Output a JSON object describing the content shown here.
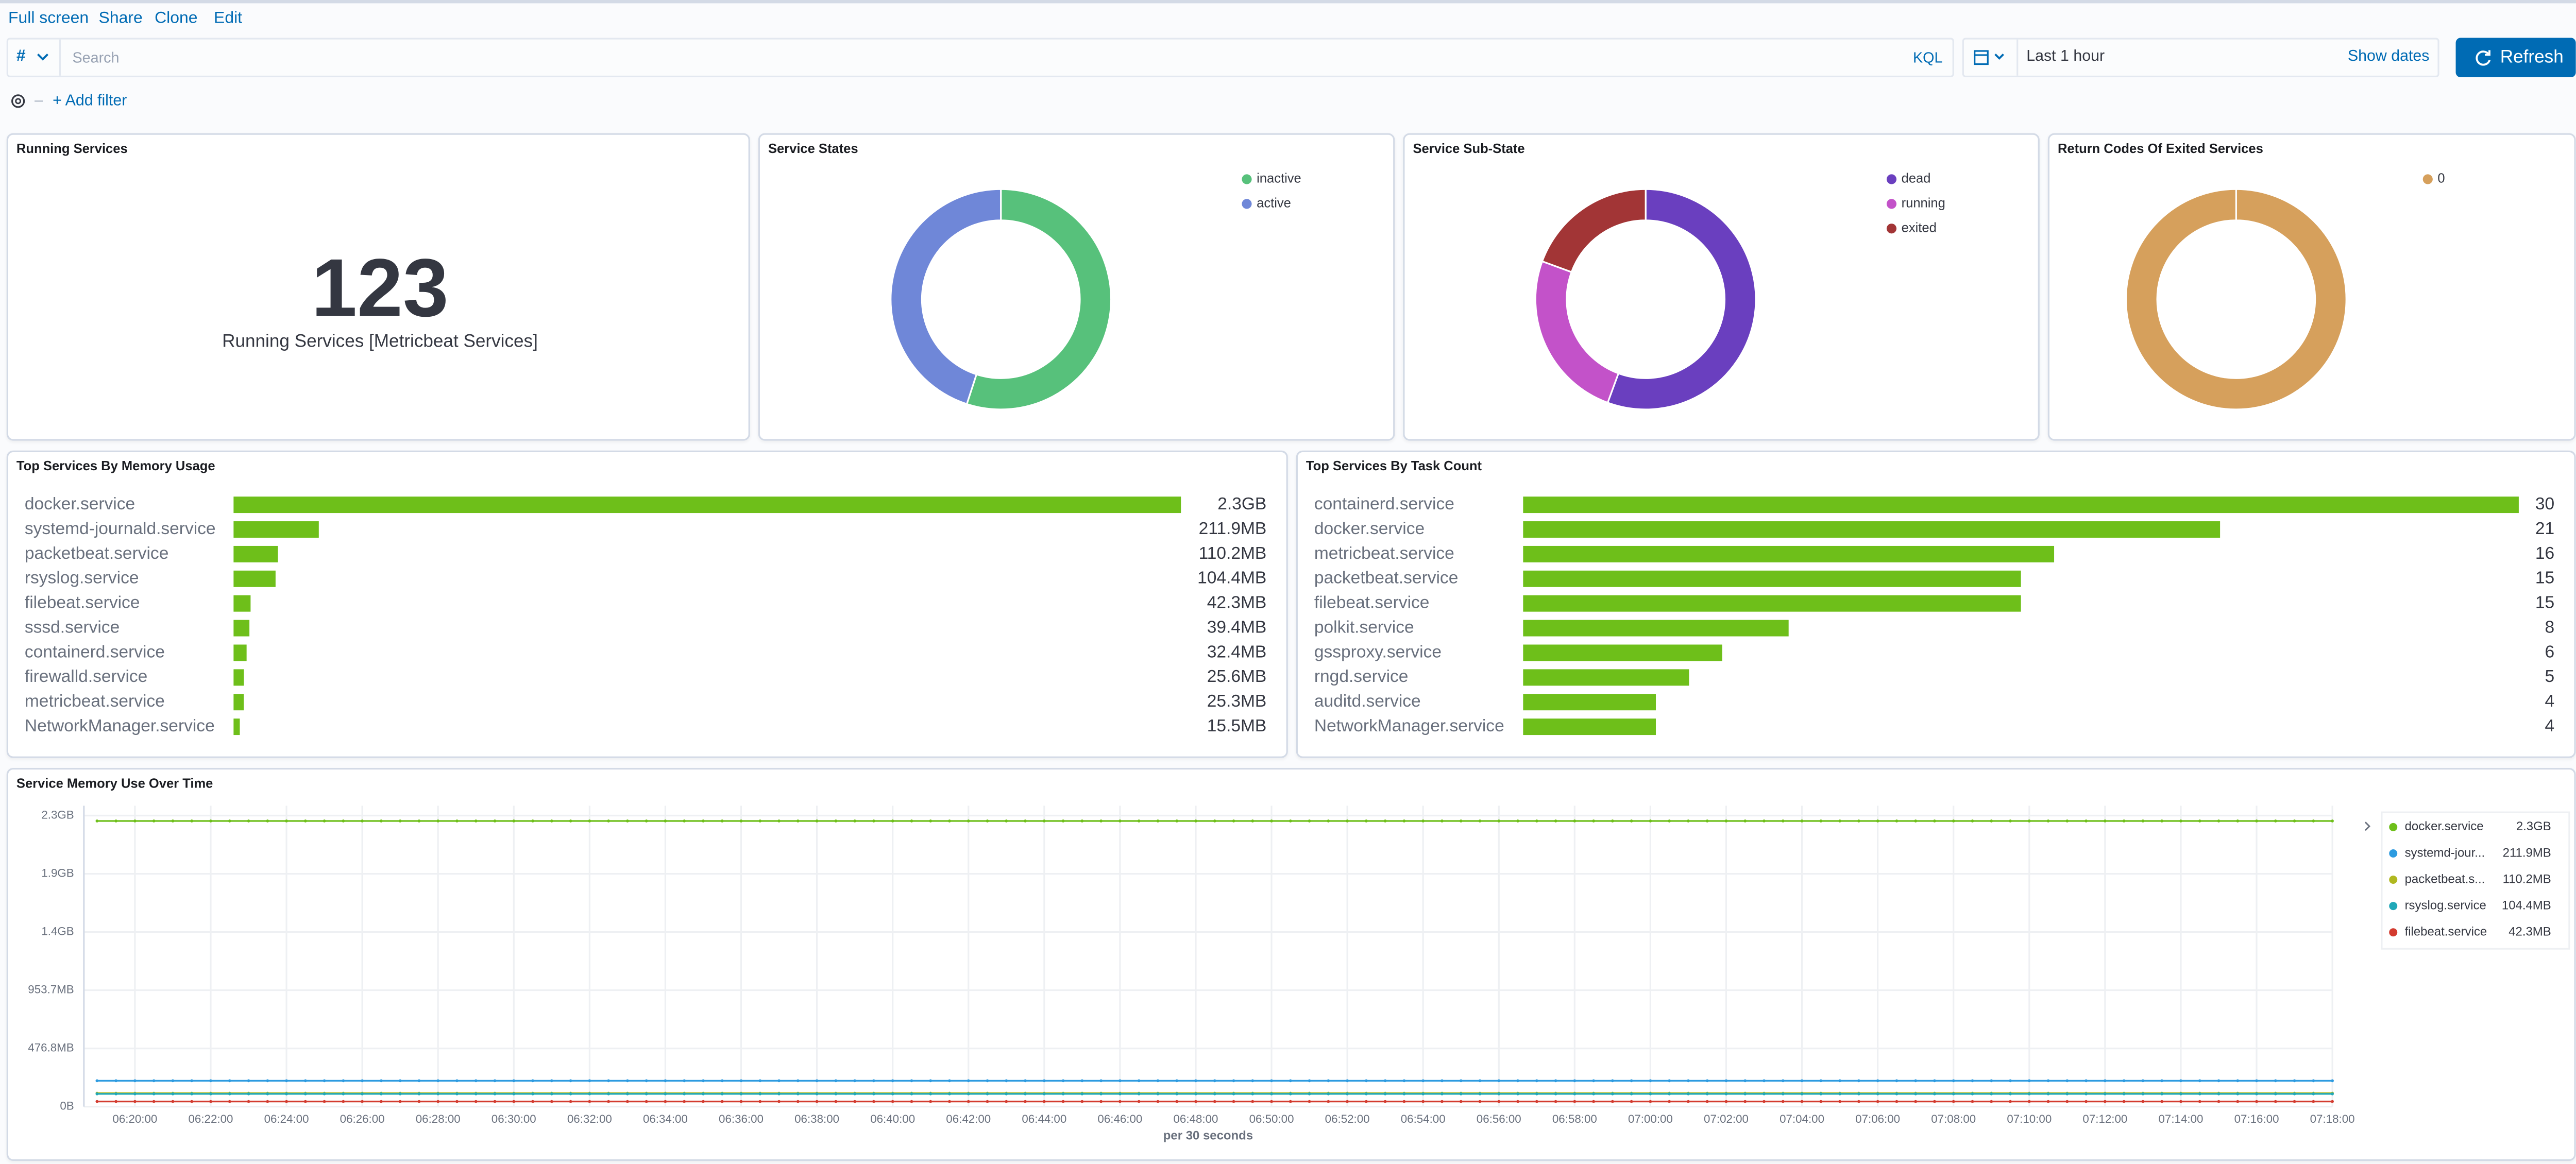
{
  "toolbar": {
    "links": [
      "Full screen",
      "Share",
      "Clone",
      "Edit"
    ],
    "query_language_symbol": "#",
    "search_placeholder": "Search",
    "query_language": "KQL",
    "time_range": "Last 1 hour",
    "show_dates": "Show dates",
    "refresh": "Refresh",
    "add_filter": "+ Add filter"
  },
  "chart_data": [
    {
      "type": "metric",
      "title": "Running Services",
      "value": 123,
      "label": "Running Services [Metricbeat Services]"
    },
    {
      "type": "pie",
      "title": "Service States",
      "categories": [
        "inactive",
        "active"
      ],
      "values": [
        55,
        45
      ],
      "colors": [
        "#57c17b",
        "#6f87d8"
      ],
      "legend": "top-right"
    },
    {
      "type": "pie",
      "title": "Service Sub-State",
      "categories": [
        "dead",
        "running",
        "exited"
      ],
      "values": [
        55.6,
        25,
        19.4
      ],
      "colors": [
        "#6a3fbf",
        "#c352c9",
        "#a23536"
      ],
      "legend": "top-right"
    },
    {
      "type": "pie",
      "title": "Return Codes Of Exited Services",
      "categories": [
        "0"
      ],
      "values": [
        100
      ],
      "colors": [
        "#d6a05c"
      ],
      "legend": "top-right"
    },
    {
      "type": "hbar",
      "title": "Top Services By Memory Usage",
      "categories": [
        "docker.service",
        "systemd-journald.service",
        "packetbeat.service",
        "rsyslog.service",
        "filebeat.service",
        "sssd.service",
        "containerd.service",
        "firewalld.service",
        "metricbeat.service",
        "NetworkManager.service"
      ],
      "values": [
        2355.2,
        211.9,
        110.2,
        104.4,
        42.3,
        39.4,
        32.4,
        25.6,
        25.3,
        15.5
      ],
      "value_labels": [
        "2.3GB",
        "211.9MB",
        "110.2MB",
        "104.4MB",
        "42.3MB",
        "39.4MB",
        "32.4MB",
        "25.6MB",
        "25.3MB",
        "15.5MB"
      ],
      "color": "#6ebf1a"
    },
    {
      "type": "hbar",
      "title": "Top Services By Task Count",
      "categories": [
        "containerd.service",
        "docker.service",
        "metricbeat.service",
        "packetbeat.service",
        "filebeat.service",
        "polkit.service",
        "gssproxy.service",
        "rngd.service",
        "auditd.service",
        "NetworkManager.service"
      ],
      "values": [
        30,
        21,
        16,
        15,
        15,
        8,
        6,
        5,
        4,
        4
      ],
      "color": "#6ebf1a"
    },
    {
      "type": "line",
      "title": "Service Memory Use Over Time",
      "xlabel": "per 30 seconds",
      "grid": true,
      "legend": "right",
      "x": [
        "06:19:00",
        "06:19:30",
        "06:20:00",
        "06:20:30",
        "06:21:00",
        "06:21:30",
        "06:22:00",
        "06:22:30",
        "06:23:00",
        "06:23:30",
        "06:24:00",
        "06:24:30",
        "06:25:00",
        "06:25:30",
        "06:26:00",
        "06:26:30",
        "06:27:00",
        "06:27:30",
        "06:28:00",
        "06:28:30",
        "06:29:00",
        "06:29:30",
        "06:30:00",
        "06:30:30",
        "06:31:00",
        "06:31:30",
        "06:32:00",
        "06:32:30",
        "06:33:00",
        "06:33:30",
        "06:34:00",
        "06:34:30",
        "06:35:00",
        "06:35:30",
        "06:36:00",
        "06:36:30",
        "06:37:00",
        "06:37:30",
        "06:38:00",
        "06:38:30",
        "06:39:00",
        "06:39:30",
        "06:40:00",
        "06:40:30",
        "06:41:00",
        "06:41:30",
        "06:42:00",
        "06:42:30",
        "06:43:00",
        "06:43:30",
        "06:44:00",
        "06:44:30",
        "06:45:00",
        "06:45:30",
        "06:46:00",
        "06:46:30",
        "06:47:00",
        "06:47:30",
        "06:48:00",
        "06:48:30",
        "06:49:00",
        "06:49:30",
        "06:50:00",
        "06:50:30",
        "06:51:00",
        "06:51:30",
        "06:52:00",
        "06:52:30",
        "06:53:00",
        "06:53:30",
        "06:54:00",
        "06:54:30",
        "06:55:00",
        "06:55:30",
        "06:56:00",
        "06:56:30",
        "06:57:00",
        "06:57:30",
        "06:58:00",
        "06:58:30",
        "06:59:00",
        "06:59:30",
        "07:00:00",
        "07:00:30",
        "07:01:00",
        "07:01:30",
        "07:02:00",
        "07:02:30",
        "07:03:00",
        "07:03:30",
        "07:04:00",
        "07:04:30",
        "07:05:00",
        "07:05:30",
        "07:06:00",
        "07:06:30",
        "07:07:00",
        "07:07:30",
        "07:08:00",
        "07:08:30",
        "07:09:00",
        "07:09:30",
        "07:10:00",
        "07:10:30",
        "07:11:00",
        "07:11:30",
        "07:12:00",
        "07:12:30",
        "07:13:00",
        "07:13:30",
        "07:14:00",
        "07:14:30",
        "07:15:00",
        "07:15:30",
        "07:16:00",
        "07:16:30",
        "07:17:00",
        "07:17:30",
        "07:18:00"
      ],
      "xticks": [
        "06:20:00",
        "06:22:00",
        "06:24:00",
        "06:26:00",
        "06:28:00",
        "06:30:00",
        "06:32:00",
        "06:34:00",
        "06:36:00",
        "06:38:00",
        "06:40:00",
        "06:42:00",
        "06:44:00",
        "06:46:00",
        "06:48:00",
        "06:50:00",
        "06:52:00",
        "06:54:00",
        "06:56:00",
        "06:58:00",
        "07:00:00",
        "07:02:00",
        "07:04:00",
        "07:06:00",
        "07:08:00",
        "07:10:00",
        "07:12:00",
        "07:14:00",
        "07:16:00",
        "07:18:00"
      ],
      "ylim": [
        0,
        2384.2
      ],
      "yticks": [
        {
          "value": 0,
          "label": "0B"
        },
        {
          "value": 476.8,
          "label": "476.8MB"
        },
        {
          "value": 953.7,
          "label": "953.7MB"
        },
        {
          "value": 1430.5,
          "label": "1.4GB"
        },
        {
          "value": 1907.3,
          "label": "1.9GB"
        },
        {
          "value": 2384.2,
          "label": "2.3GB"
        }
      ],
      "series": [
        {
          "name": "docker.service",
          "color": "#6ebf1a",
          "last_value_label": "2.3GB",
          "values": [
            2340,
            2340,
            2340,
            2340,
            2340,
            2340,
            2340,
            2340,
            2340,
            2340,
            2340,
            2340,
            2340,
            2340,
            2340,
            2340,
            2340,
            2340,
            2340,
            2340,
            2340,
            2340,
            2340,
            2340,
            2340,
            2340,
            2340,
            2340,
            2340,
            2340,
            2340,
            2340,
            2340,
            2340,
            2340,
            2340,
            2340,
            2340,
            2340,
            2340,
            2340,
            2340,
            2340,
            2340,
            2340,
            2340,
            2340,
            2340,
            2340,
            2340,
            2340,
            2340,
            2340,
            2340,
            2340,
            2340,
            2340,
            2340,
            2340,
            2340,
            2340,
            2340,
            2340,
            2340,
            2340,
            2340,
            2340,
            2340,
            2340,
            2340,
            2340,
            2340,
            2340,
            2340,
            2340,
            2340,
            2340,
            2340,
            2340,
            2340,
            2340,
            2340,
            2340,
            2340,
            2340,
            2340,
            2340,
            2340,
            2340,
            2340,
            2340,
            2340,
            2340,
            2340,
            2340,
            2340,
            2340,
            2340,
            2340,
            2340,
            2340,
            2340,
            2340,
            2340,
            2340,
            2340,
            2340,
            2340,
            2340,
            2340,
            2340,
            2340,
            2340,
            2340,
            2340,
            2340,
            2340,
            2340,
            2340
          ]
        },
        {
          "name": "systemd-jour...",
          "color": "#2d9be0",
          "last_value_label": "211.9MB",
          "values": [
            211.9,
            211.9,
            211.9,
            211.9,
            211.9,
            211.9,
            211.9,
            211.9,
            211.9,
            211.9,
            211.9,
            211.9,
            211.9,
            211.9,
            211.9,
            211.9,
            211.9,
            211.9,
            211.9,
            211.9,
            211.9,
            211.9,
            211.9,
            211.9,
            211.9,
            211.9,
            211.9,
            211.9,
            211.9,
            211.9,
            211.9,
            211.9,
            211.9,
            211.9,
            211.9,
            211.9,
            211.9,
            211.9,
            211.9,
            211.9,
            211.9,
            211.9,
            211.9,
            211.9,
            211.9,
            211.9,
            211.9,
            211.9,
            211.9,
            211.9,
            211.9,
            211.9,
            211.9,
            211.9,
            211.9,
            211.9,
            211.9,
            211.9,
            211.9,
            211.9,
            211.9,
            211.9,
            211.9,
            211.9,
            211.9,
            211.9,
            211.9,
            211.9,
            211.9,
            211.9,
            211.9,
            211.9,
            211.9,
            211.9,
            211.9,
            211.9,
            211.9,
            211.9,
            211.9,
            211.9,
            211.9,
            211.9,
            211.9,
            211.9,
            211.9,
            211.9,
            211.9,
            211.9,
            211.9,
            211.9,
            211.9,
            211.9,
            211.9,
            211.9,
            211.9,
            211.9,
            211.9,
            211.9,
            211.9,
            211.9,
            211.9,
            211.9,
            211.9,
            211.9,
            211.9,
            211.9,
            211.9,
            211.9,
            211.9,
            211.9,
            211.9,
            211.9,
            211.9,
            211.9,
            211.9,
            211.9,
            211.9,
            211.9,
            211.9
          ]
        },
        {
          "name": "packetbeat.s...",
          "color": "#b0b820",
          "last_value_label": "110.2MB",
          "values": [
            110.2,
            110.2,
            110.2,
            110.2,
            110.2,
            110.2,
            110.2,
            110.2,
            110.2,
            110.2,
            110.2,
            110.2,
            110.2,
            110.2,
            110.2,
            110.2,
            110.2,
            110.2,
            110.2,
            110.2,
            110.2,
            110.2,
            110.2,
            110.2,
            110.2,
            110.2,
            110.2,
            110.2,
            110.2,
            110.2,
            110.2,
            110.2,
            110.2,
            110.2,
            110.2,
            110.2,
            110.2,
            110.2,
            110.2,
            110.2,
            110.2,
            110.2,
            110.2,
            110.2,
            110.2,
            110.2,
            110.2,
            110.2,
            110.2,
            110.2,
            110.2,
            110.2,
            110.2,
            110.2,
            110.2,
            110.2,
            110.2,
            110.2,
            110.2,
            110.2,
            110.2,
            110.2,
            110.2,
            110.2,
            110.2,
            110.2,
            110.2,
            110.2,
            110.2,
            110.2,
            110.2,
            110.2,
            110.2,
            110.2,
            110.2,
            110.2,
            110.2,
            110.2,
            110.2,
            110.2,
            110.2,
            110.2,
            110.2,
            110.2,
            110.2,
            110.2,
            110.2,
            110.2,
            110.2,
            110.2,
            110.2,
            110.2,
            110.2,
            110.2,
            110.2,
            110.2,
            110.2,
            110.2,
            110.2,
            110.2,
            110.2,
            110.2,
            110.2,
            110.2,
            110.2,
            110.2,
            110.2,
            110.2,
            110.2,
            110.2,
            110.2,
            110.2,
            110.2,
            110.2,
            110.2,
            110.2,
            110.2,
            110.2,
            110.2
          ]
        },
        {
          "name": "rsyslog.service",
          "color": "#20a8b8",
          "last_value_label": "104.4MB",
          "values": [
            104.4,
            104.4,
            104.4,
            104.4,
            104.4,
            104.4,
            104.4,
            104.4,
            104.4,
            104.4,
            104.4,
            104.4,
            104.4,
            104.4,
            104.4,
            104.4,
            104.4,
            104.4,
            104.4,
            104.4,
            104.4,
            104.4,
            104.4,
            104.4,
            104.4,
            104.4,
            104.4,
            104.4,
            104.4,
            104.4,
            104.4,
            104.4,
            104.4,
            104.4,
            104.4,
            104.4,
            104.4,
            104.4,
            104.4,
            104.4,
            104.4,
            104.4,
            104.4,
            104.4,
            104.4,
            104.4,
            104.4,
            104.4,
            104.4,
            104.4,
            104.4,
            104.4,
            104.4,
            104.4,
            104.4,
            104.4,
            104.4,
            104.4,
            104.4,
            104.4,
            104.4,
            104.4,
            104.4,
            104.4,
            104.4,
            104.4,
            104.4,
            104.4,
            104.4,
            104.4,
            104.4,
            104.4,
            104.4,
            104.4,
            104.4,
            104.4,
            104.4,
            104.4,
            104.4,
            104.4,
            104.4,
            104.4,
            104.4,
            104.4,
            104.4,
            104.4,
            104.4,
            104.4,
            104.4,
            104.4,
            104.4,
            104.4,
            104.4,
            104.4,
            104.4,
            104.4,
            104.4,
            104.4,
            104.4,
            104.4,
            104.4,
            104.4,
            104.4,
            104.4,
            104.4,
            104.4,
            104.4,
            104.4,
            104.4,
            104.4,
            104.4,
            104.4,
            104.4,
            104.4,
            104.4,
            104.4,
            104.4,
            104.4,
            104.4
          ]
        },
        {
          "name": "filebeat.service",
          "color": "#d33b2f",
          "last_value_label": "42.3MB",
          "values": [
            42.3,
            42.3,
            42.3,
            42.3,
            42.3,
            42.3,
            42.3,
            42.3,
            42.3,
            42.3,
            42.3,
            42.3,
            42.3,
            42.3,
            42.3,
            42.3,
            42.3,
            42.3,
            42.3,
            42.3,
            42.3,
            42.3,
            42.3,
            42.3,
            42.3,
            42.3,
            42.3,
            42.3,
            42.3,
            42.3,
            42.3,
            42.3,
            42.3,
            42.3,
            42.3,
            42.3,
            42.3,
            42.3,
            42.3,
            42.3,
            42.3,
            42.3,
            42.3,
            42.3,
            42.3,
            42.3,
            42.3,
            42.3,
            42.3,
            42.3,
            42.3,
            42.3,
            42.3,
            42.3,
            42.3,
            42.3,
            42.3,
            42.3,
            42.3,
            42.3,
            42.3,
            42.3,
            42.3,
            42.3,
            42.3,
            42.3,
            42.3,
            42.3,
            42.3,
            42.3,
            42.3,
            42.3,
            42.3,
            42.3,
            42.3,
            42.3,
            42.3,
            42.3,
            42.3,
            42.3,
            42.3,
            42.3,
            42.3,
            42.3,
            42.3,
            42.3,
            42.3,
            42.3,
            42.3,
            42.3,
            42.3,
            42.3,
            42.3,
            42.3,
            42.3,
            42.3,
            42.3,
            42.3,
            42.3,
            42.3,
            42.3,
            42.3,
            42.3,
            42.3,
            42.3,
            42.3,
            42.3,
            42.3,
            42.3,
            42.3,
            42.3,
            42.3,
            42.3,
            42.3,
            42.3,
            42.3,
            42.3,
            42.3,
            42.3
          ]
        }
      ]
    }
  ]
}
